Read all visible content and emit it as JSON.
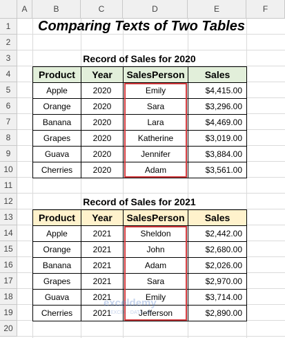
{
  "columns": [
    "A",
    "B",
    "C",
    "D",
    "E",
    "F"
  ],
  "row_numbers": [
    1,
    2,
    3,
    4,
    5,
    6,
    7,
    8,
    9,
    10,
    11,
    12,
    13,
    14,
    15,
    16,
    17,
    18,
    19,
    20
  ],
  "title": "Comparing Texts of Two Tables",
  "tables": [
    {
      "caption": "Record of Sales for 2020",
      "header": [
        "Product",
        "Year",
        "SalesPerson",
        "Sales"
      ],
      "rows": [
        [
          "Apple",
          "2020",
          "Emily",
          "$4,415.00"
        ],
        [
          "Orange",
          "2020",
          "Sara",
          "$3,296.00"
        ],
        [
          "Banana",
          "2020",
          "Lara",
          "$4,469.00"
        ],
        [
          "Grapes",
          "2020",
          "Katherine",
          "$3,019.00"
        ],
        [
          "Guava",
          "2020",
          "Jennifer",
          "$3,884.00"
        ],
        [
          "Cherries",
          "2020",
          "Adam",
          "$3,561.00"
        ]
      ]
    },
    {
      "caption": "Record of Sales for 2021",
      "header": [
        "Product",
        "Year",
        "SalesPerson",
        "Sales"
      ],
      "rows": [
        [
          "Apple",
          "2021",
          "Sheldon",
          "$2,442.00"
        ],
        [
          "Orange",
          "2021",
          "John",
          "$2,680.00"
        ],
        [
          "Banana",
          "2021",
          "Adam",
          "$2,026.00"
        ],
        [
          "Grapes",
          "2021",
          "Sara",
          "$2,970.00"
        ],
        [
          "Guava",
          "2021",
          "Emily",
          "$3,714.00"
        ],
        [
          "Cherries",
          "2021",
          "Jefferson",
          "$2,890.00"
        ]
      ]
    }
  ],
  "watermark": {
    "name": "exceldemy",
    "tagline": "EXCEL · DATA · BI"
  }
}
